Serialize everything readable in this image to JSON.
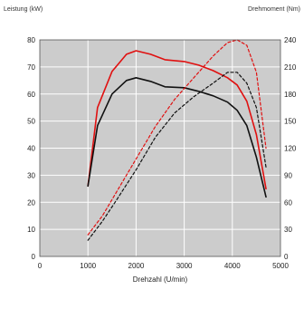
{
  "chart_data": {
    "type": "line",
    "header_left": "Leistung (kW)",
    "header_right": "Drehmoment (Nm)",
    "xlabel": "Drehzahl (U/min)",
    "x_ticks": [
      "0",
      "1000",
      "2000",
      "3000",
      "4000",
      "5000"
    ],
    "y_left_ticks": [
      "0",
      "10",
      "20",
      "30",
      "40",
      "50",
      "60",
      "70",
      "80"
    ],
    "y_right_ticks": [
      "0",
      "30",
      "60",
      "90",
      "120",
      "150",
      "180",
      "210",
      "240"
    ],
    "xlim": [
      0,
      5000
    ],
    "ylim_left": [
      0,
      80
    ],
    "ylim_right": [
      0,
      240
    ],
    "grid": true,
    "colors": {
      "plot_bg": "#cccccc",
      "grid": "#ffffff",
      "red": "#e01010",
      "black": "#111111"
    },
    "series": [
      {
        "axis": "right",
        "style": "solid",
        "color": "red",
        "x": [
          1000,
          1200,
          1500,
          1800,
          2000,
          2300,
          2600,
          3000,
          3300,
          3600,
          3900,
          4100,
          4300,
          4500,
          4700
        ],
        "y": [
          78,
          165,
          205,
          224,
          228,
          224,
          218,
          216,
          212,
          206,
          198,
          190,
          172,
          135,
          75
        ]
      },
      {
        "axis": "right",
        "style": "solid",
        "color": "black",
        "x": [
          1000,
          1200,
          1500,
          1800,
          2000,
          2300,
          2600,
          3000,
          3300,
          3600,
          3900,
          4100,
          4300,
          4500,
          4700
        ],
        "y": [
          78,
          145,
          180,
          195,
          198,
          194,
          188,
          187,
          183,
          178,
          171,
          162,
          145,
          110,
          66
        ]
      },
      {
        "axis": "left",
        "style": "dashed",
        "color": "red",
        "x": [
          1000,
          1300,
          1600,
          2000,
          2400,
          2800,
          3200,
          3600,
          3900,
          4100,
          4300,
          4500,
          4700
        ],
        "y": [
          8,
          15,
          24,
          36,
          48,
          58,
          66,
          74,
          79,
          80,
          78,
          68,
          40
        ]
      },
      {
        "axis": "left",
        "style": "dashed",
        "color": "black",
        "x": [
          1000,
          1300,
          1600,
          2000,
          2400,
          2800,
          3200,
          3600,
          3900,
          4100,
          4300,
          4500,
          4700
        ],
        "y": [
          6,
          13,
          21,
          32,
          44,
          53,
          59,
          64,
          68,
          68,
          64,
          55,
          33
        ]
      }
    ]
  }
}
